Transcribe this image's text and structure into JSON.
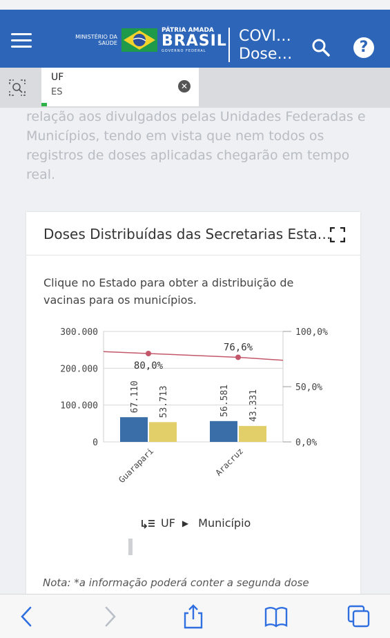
{
  "header": {
    "ministry": "MINISTÉRIO DA SAÚDE",
    "patria": "PÁTRIA AMADA",
    "brasil": "BRASIL",
    "governo": "GOVERNO FEDERAL",
    "title_line1": "COVI…",
    "title_line2": "Dose…",
    "color": "#2d66b8"
  },
  "filter": {
    "label": "UF",
    "value": "ES"
  },
  "faded_text": "relação aos divulgados pelas Unidades Federadas e Municípios, tendo em vista que nem todos os registros de doses aplicadas chegarão em tempo real.",
  "card": {
    "title": "Doses Distribuídas das Secretarias Esta…",
    "instructions": "Clique no Estado para obter a distribuição de vacinas para os municípios.",
    "note": "Nota: *a informação poderá conter a segunda dose"
  },
  "legend": {
    "uf": "UF",
    "municipio": "Município"
  },
  "chart_data": {
    "type": "bar",
    "categories": [
      "Guarapari",
      "Aracruz"
    ],
    "series": [
      {
        "values": [
          67110,
          56581
        ],
        "color": "#3a6ea8",
        "labels": [
          "67.110",
          "56.581"
        ]
      },
      {
        "values": [
          53713,
          43331
        ],
        "color": "#e3cf6a",
        "labels": [
          "53.713",
          "43.331"
        ]
      }
    ],
    "line": {
      "values": [
        80.0,
        76.6
      ],
      "labels": [
        "80,0%",
        "76,6%"
      ],
      "color": "#c4566a"
    },
    "y_left": {
      "min": 0,
      "max": 300000,
      "ticks": [
        "0",
        "100.000",
        "200.000",
        "300.000"
      ]
    },
    "y_right": {
      "min": 0,
      "max": 100,
      "ticks": [
        "0,0%",
        "50,0%",
        "100,0%"
      ]
    }
  }
}
